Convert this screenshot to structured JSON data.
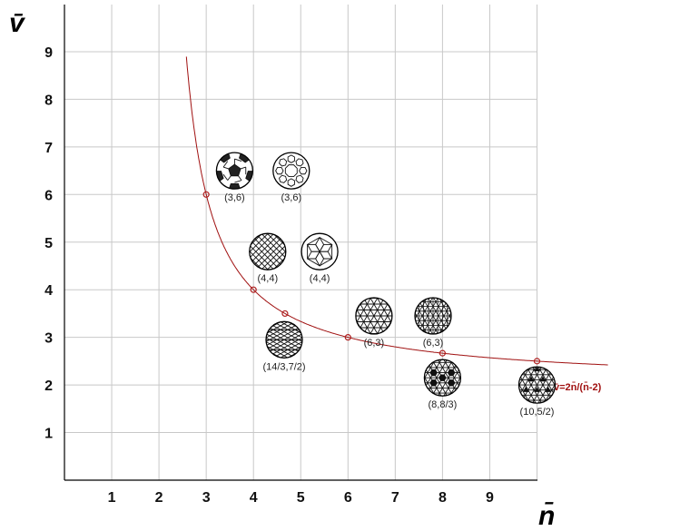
{
  "chart_data": {
    "type": "scatter",
    "title": "",
    "xlabel": "n̄",
    "ylabel": "v̄",
    "xlim": [
      0,
      10
    ],
    "ylim": [
      0,
      10
    ],
    "x_ticks": [
      1,
      2,
      3,
      4,
      5,
      6,
      7,
      8,
      9
    ],
    "y_ticks": [
      1,
      2,
      3,
      4,
      5,
      6,
      7,
      8,
      9
    ],
    "grid": true,
    "curve": {
      "label": "v̄=2n̄/(n̄-2)",
      "formula": "v = 2n/(n-2)",
      "color": "#a01010"
    },
    "curve_points": [
      {
        "x": 3,
        "y": 6
      },
      {
        "x": 4,
        "y": 4
      },
      {
        "x": 4.667,
        "y": 3.5
      },
      {
        "x": 6,
        "y": 3
      },
      {
        "x": 8,
        "y": 2.667
      },
      {
        "x": 10,
        "y": 2.5
      }
    ],
    "tilings": [
      {
        "label": "(3,6)",
        "pattern": "truncated-icosahedron",
        "x": 3.6,
        "y": 6.5
      },
      {
        "label": "(3,6)",
        "pattern": "hexagons-and-squares",
        "x": 4.8,
        "y": 6.5
      },
      {
        "label": "(4,4)",
        "pattern": "square-grid",
        "x": 4.3,
        "y": 4.8
      },
      {
        "label": "(4,4)",
        "pattern": "rhombic",
        "x": 5.4,
        "y": 4.8
      },
      {
        "label": "(14/3,7/2)",
        "pattern": "rhombic-mesh",
        "x": 4.65,
        "y": 2.95
      },
      {
        "label": "(6,3)",
        "pattern": "triangular",
        "x": 6.55,
        "y": 3.45
      },
      {
        "label": "(6,3)",
        "pattern": "fine-triangular",
        "x": 7.8,
        "y": 3.45
      },
      {
        "label": "(8,8/3)",
        "pattern": "triangular-hexagonal",
        "x": 8.0,
        "y": 2.15
      },
      {
        "label": "(10,5/2)",
        "pattern": "dense-triangular",
        "x": 10.0,
        "y": 2.0
      }
    ]
  },
  "colors": {
    "grid": "#c8c8c8",
    "axis": "#000000",
    "curve": "#a01010",
    "marker": "#b02020"
  }
}
